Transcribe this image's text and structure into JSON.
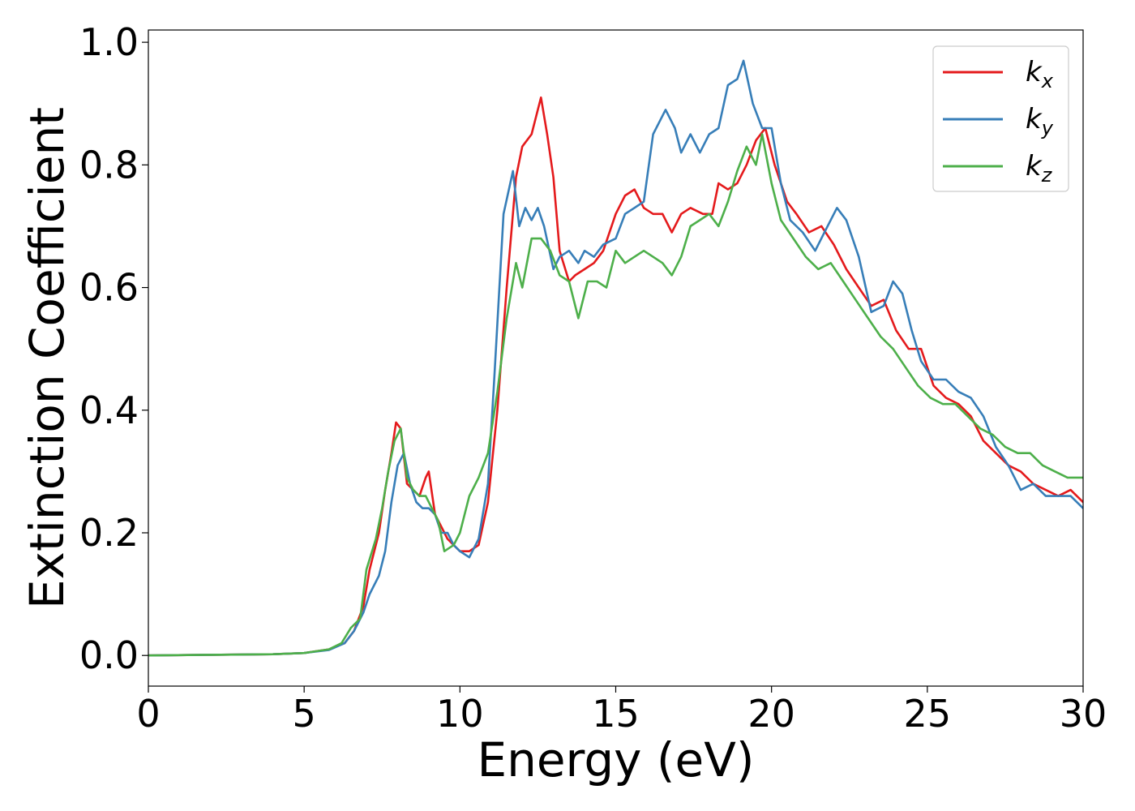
{
  "chart_data": {
    "type": "line",
    "title": "",
    "xlabel": "Energy (eV)",
    "ylabel": "Extinction Coefficient",
    "xlim": [
      0,
      30
    ],
    "ylim": [
      -0.05,
      1.02
    ],
    "xticks": [
      0,
      5,
      10,
      15,
      20,
      25,
      30
    ],
    "yticks": [
      0.0,
      0.2,
      0.4,
      0.6,
      0.8,
      1.0
    ],
    "xtick_labels": [
      "0",
      "5",
      "10",
      "15",
      "20",
      "25",
      "30"
    ],
    "ytick_labels": [
      "0.0",
      "0.2",
      "0.4",
      "0.6",
      "0.8",
      "1.0"
    ],
    "grid": false,
    "legend_position": "top-right",
    "series": [
      {
        "name": "k_x",
        "legend_base": "k",
        "legend_sub": "x",
        "color": "#e41a1c",
        "x": [
          0,
          2,
          4,
          5,
          5.8,
          6.3,
          6.6,
          6.9,
          7.1,
          7.4,
          7.6,
          7.8,
          7.95,
          8.1,
          8.3,
          8.5,
          8.7,
          8.9,
          9.0,
          9.2,
          9.4,
          9.6,
          9.8,
          10.0,
          10.3,
          10.6,
          10.9,
          11.2,
          11.5,
          11.8,
          12.0,
          12.3,
          12.5,
          12.6,
          12.8,
          13.0,
          13.2,
          13.5,
          13.7,
          14.0,
          14.3,
          14.6,
          15.0,
          15.3,
          15.6,
          15.9,
          16.2,
          16.5,
          16.8,
          17.1,
          17.4,
          17.8,
          18.1,
          18.3,
          18.6,
          18.9,
          19.2,
          19.5,
          19.8,
          20.1,
          20.5,
          20.8,
          21.2,
          21.6,
          22.0,
          22.4,
          22.8,
          23.2,
          23.6,
          24.0,
          24.4,
          24.8,
          25.2,
          25.6,
          26.0,
          26.4,
          26.8,
          27.2,
          27.6,
          28.0,
          28.4,
          28.8,
          29.2,
          29.6,
          30.0
        ],
        "values": [
          0.0,
          0.001,
          0.002,
          0.004,
          0.01,
          0.02,
          0.04,
          0.08,
          0.14,
          0.2,
          0.27,
          0.33,
          0.38,
          0.37,
          0.28,
          0.27,
          0.26,
          0.29,
          0.3,
          0.23,
          0.21,
          0.19,
          0.18,
          0.17,
          0.17,
          0.18,
          0.25,
          0.4,
          0.6,
          0.78,
          0.83,
          0.85,
          0.89,
          0.91,
          0.85,
          0.78,
          0.66,
          0.61,
          0.62,
          0.63,
          0.64,
          0.66,
          0.72,
          0.75,
          0.76,
          0.73,
          0.72,
          0.72,
          0.69,
          0.72,
          0.73,
          0.72,
          0.72,
          0.77,
          0.76,
          0.77,
          0.8,
          0.84,
          0.86,
          0.8,
          0.74,
          0.72,
          0.69,
          0.7,
          0.67,
          0.63,
          0.6,
          0.57,
          0.58,
          0.53,
          0.5,
          0.5,
          0.44,
          0.42,
          0.41,
          0.39,
          0.35,
          0.33,
          0.31,
          0.3,
          0.28,
          0.27,
          0.26,
          0.27,
          0.25
        ]
      },
      {
        "name": "k_y",
        "legend_base": "k",
        "legend_sub": "y",
        "color": "#377eb8",
        "x": [
          0,
          2,
          4,
          5,
          5.8,
          6.3,
          6.6,
          6.9,
          7.1,
          7.4,
          7.6,
          7.8,
          8.0,
          8.2,
          8.4,
          8.6,
          8.8,
          9.0,
          9.2,
          9.4,
          9.6,
          9.8,
          10.0,
          10.3,
          10.6,
          10.9,
          11.1,
          11.4,
          11.7,
          11.9,
          12.1,
          12.3,
          12.5,
          12.7,
          13.0,
          13.2,
          13.5,
          13.8,
          14.0,
          14.3,
          14.6,
          15.0,
          15.3,
          15.6,
          15.9,
          16.2,
          16.6,
          16.9,
          17.1,
          17.4,
          17.7,
          18.0,
          18.3,
          18.6,
          18.9,
          19.1,
          19.4,
          19.7,
          20.0,
          20.3,
          20.6,
          21.0,
          21.4,
          21.8,
          22.1,
          22.4,
          22.8,
          23.2,
          23.6,
          23.9,
          24.2,
          24.5,
          24.8,
          25.2,
          25.6,
          26.0,
          26.4,
          26.8,
          27.2,
          27.6,
          28.0,
          28.4,
          28.8,
          29.2,
          29.6,
          30.0
        ],
        "values": [
          0.0,
          0.001,
          0.002,
          0.004,
          0.009,
          0.02,
          0.04,
          0.07,
          0.1,
          0.13,
          0.17,
          0.25,
          0.31,
          0.33,
          0.28,
          0.25,
          0.24,
          0.24,
          0.23,
          0.2,
          0.2,
          0.18,
          0.17,
          0.16,
          0.19,
          0.28,
          0.45,
          0.72,
          0.79,
          0.7,
          0.73,
          0.71,
          0.73,
          0.7,
          0.63,
          0.65,
          0.66,
          0.64,
          0.66,
          0.65,
          0.67,
          0.68,
          0.72,
          0.73,
          0.74,
          0.85,
          0.89,
          0.86,
          0.82,
          0.85,
          0.82,
          0.85,
          0.86,
          0.93,
          0.94,
          0.97,
          0.9,
          0.86,
          0.86,
          0.77,
          0.71,
          0.69,
          0.66,
          0.7,
          0.73,
          0.71,
          0.65,
          0.56,
          0.57,
          0.61,
          0.59,
          0.53,
          0.48,
          0.45,
          0.45,
          0.43,
          0.42,
          0.39,
          0.34,
          0.31,
          0.27,
          0.28,
          0.26,
          0.26,
          0.26,
          0.24
        ]
      },
      {
        "name": "k_z",
        "legend_base": "k",
        "legend_sub": "z",
        "color": "#4daf4a",
        "x": [
          0,
          2,
          4,
          5,
          5.8,
          6.2,
          6.5,
          6.8,
          7.0,
          7.3,
          7.5,
          7.7,
          7.9,
          8.1,
          8.3,
          8.5,
          8.7,
          8.9,
          9.1,
          9.3,
          9.5,
          9.8,
          10.0,
          10.3,
          10.6,
          10.9,
          11.2,
          11.5,
          11.8,
          12.0,
          12.3,
          12.6,
          12.9,
          13.2,
          13.5,
          13.8,
          14.1,
          14.4,
          14.7,
          15.0,
          15.3,
          15.6,
          15.9,
          16.2,
          16.5,
          16.8,
          17.1,
          17.4,
          17.7,
          18.0,
          18.3,
          18.6,
          18.9,
          19.2,
          19.5,
          19.7,
          20.0,
          20.3,
          20.7,
          21.1,
          21.5,
          21.9,
          22.3,
          22.7,
          23.1,
          23.5,
          23.9,
          24.3,
          24.7,
          25.1,
          25.5,
          25.9,
          26.3,
          26.7,
          27.1,
          27.5,
          27.9,
          28.3,
          28.7,
          29.1,
          29.5,
          30.0
        ],
        "values": [
          0.0,
          0.001,
          0.002,
          0.004,
          0.01,
          0.02,
          0.045,
          0.06,
          0.14,
          0.19,
          0.24,
          0.3,
          0.35,
          0.37,
          0.29,
          0.27,
          0.26,
          0.26,
          0.24,
          0.22,
          0.17,
          0.18,
          0.2,
          0.26,
          0.29,
          0.33,
          0.43,
          0.55,
          0.64,
          0.6,
          0.68,
          0.68,
          0.66,
          0.62,
          0.61,
          0.55,
          0.61,
          0.61,
          0.6,
          0.66,
          0.64,
          0.65,
          0.66,
          0.65,
          0.64,
          0.62,
          0.65,
          0.7,
          0.71,
          0.72,
          0.7,
          0.74,
          0.79,
          0.83,
          0.8,
          0.85,
          0.77,
          0.71,
          0.68,
          0.65,
          0.63,
          0.64,
          0.61,
          0.58,
          0.55,
          0.52,
          0.5,
          0.47,
          0.44,
          0.42,
          0.41,
          0.41,
          0.39,
          0.37,
          0.36,
          0.34,
          0.33,
          0.33,
          0.31,
          0.3,
          0.29,
          0.29
        ]
      }
    ]
  }
}
